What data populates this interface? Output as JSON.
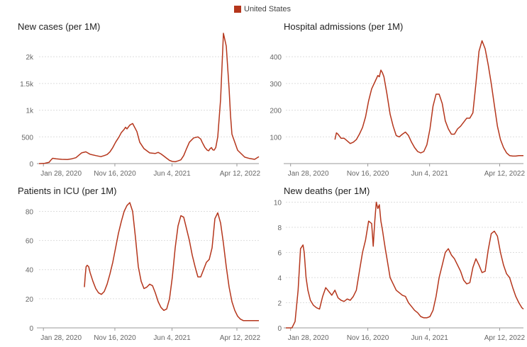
{
  "legend": {
    "label": "United States",
    "color": "#b5361c"
  },
  "colors": {
    "series": "#b5361c",
    "grid": "#dddddd",
    "axis_text": "#666666",
    "baseline": "#999999"
  },
  "x_ticks": [
    "Jan 28, 2020",
    "Nov 16, 2020",
    "Jun 4, 2021",
    "Apr 12, 2022"
  ],
  "chart_data": [
    {
      "type": "line",
      "title": "New cases (per 1M)",
      "series_name": "United States",
      "ylim": [
        0,
        2400
      ],
      "yticks": [
        0,
        500,
        1000,
        1500,
        2000
      ],
      "ytick_labels": [
        "0",
        "500",
        "1k",
        "1.5k",
        "2k"
      ],
      "x": [
        0,
        20,
        36,
        40,
        48,
        60,
        80,
        100,
        116,
        130,
        150,
        165,
        180,
        200,
        218,
        230,
        240,
        250,
        260,
        270,
        282,
        290,
        300,
        305,
        310,
        320,
        330,
        345,
        355,
        370,
        390,
        410,
        420,
        430,
        440,
        450,
        460,
        470,
        480,
        490,
        500,
        510,
        520,
        530,
        545,
        560,
        570,
        575,
        580,
        585,
        590,
        593,
        598,
        603,
        608,
        612,
        617,
        623,
        630,
        640,
        650,
        660,
        670,
        675,
        680,
        700,
        725,
        742,
        760,
        775
      ],
      "values": [
        0,
        5,
        25,
        55,
        100,
        90,
        80,
        75,
        90,
        110,
        200,
        220,
        175,
        150,
        130,
        150,
        170,
        220,
        300,
        400,
        500,
        580,
        640,
        680,
        650,
        720,
        750,
        600,
        400,
        280,
        200,
        190,
        210,
        180,
        140,
        100,
        60,
        40,
        35,
        50,
        70,
        150,
        280,
        400,
        480,
        500,
        460,
        400,
        350,
        300,
        270,
        250,
        240,
        280,
        300,
        260,
        250,
        300,
        500,
        1200,
        2440,
        2200,
        1400,
        900,
        550,
        250,
        120,
        95,
        80,
        130
      ]
    },
    {
      "type": "line",
      "title": "Hospital admissions (per 1M)",
      "series_name": "United States",
      "ylim": [
        0,
        480
      ],
      "yticks": [
        0,
        100,
        200,
        300,
        400
      ],
      "ytick_labels": [
        "",
        "100",
        "200",
        "300",
        "400"
      ],
      "x": [
        160,
        165,
        170,
        180,
        190,
        200,
        210,
        220,
        230,
        240,
        250,
        260,
        270,
        280,
        290,
        300,
        305,
        310,
        315,
        320,
        330,
        340,
        350,
        360,
        370,
        380,
        390,
        400,
        410,
        420,
        430,
        440,
        450,
        460,
        470,
        480,
        490,
        500,
        510,
        520,
        530,
        540,
        550,
        560,
        570,
        580,
        590,
        600,
        610,
        620,
        630,
        640,
        650,
        660,
        670,
        680,
        690,
        700,
        710,
        720,
        730,
        740,
        750,
        760,
        770,
        775
      ],
      "values": [
        90,
        115,
        110,
        95,
        95,
        85,
        75,
        80,
        90,
        110,
        135,
        175,
        235,
        280,
        305,
        330,
        325,
        350,
        340,
        325,
        260,
        185,
        140,
        105,
        100,
        110,
        118,
        105,
        80,
        60,
        45,
        40,
        45,
        70,
        130,
        215,
        260,
        260,
        225,
        160,
        130,
        110,
        110,
        130,
        140,
        155,
        170,
        170,
        190,
        300,
        420,
        460,
        430,
        370,
        300,
        220,
        140,
        90,
        60,
        40,
        30,
        28,
        28,
        30,
        30,
        30
      ]
    },
    {
      "type": "line",
      "title": "Patients in ICU (per 1M)",
      "series_name": "United States",
      "ylim": [
        0,
        88
      ],
      "yticks": [
        0,
        20,
        40,
        60,
        80
      ],
      "ytick_labels": [
        "0",
        "20",
        "40",
        "60",
        "80"
      ],
      "x": [
        160,
        163,
        166,
        170,
        175,
        180,
        190,
        200,
        210,
        220,
        230,
        240,
        250,
        260,
        270,
        280,
        290,
        300,
        310,
        320,
        330,
        340,
        350,
        360,
        370,
        380,
        390,
        400,
        410,
        420,
        430,
        440,
        450,
        460,
        470,
        480,
        490,
        500,
        510,
        520,
        530,
        540,
        550,
        560,
        570,
        580,
        590,
        600,
        610,
        620,
        630,
        640,
        650,
        660,
        670,
        680,
        690,
        700,
        710,
        720,
        730,
        740,
        750,
        760,
        770,
        775
      ],
      "values": [
        28,
        36,
        42,
        43,
        42,
        38,
        32,
        27,
        24,
        23,
        25,
        30,
        37,
        45,
        55,
        65,
        73,
        80,
        84,
        86,
        80,
        62,
        42,
        32,
        27,
        28,
        30,
        29,
        24,
        18,
        14,
        12,
        13,
        20,
        35,
        55,
        70,
        77,
        76,
        68,
        60,
        50,
        42,
        35,
        35,
        40,
        45,
        47,
        55,
        75,
        79,
        72,
        58,
        42,
        28,
        18,
        12,
        8,
        6,
        5,
        5,
        5,
        5,
        5,
        5,
        5
      ]
    },
    {
      "type": "line",
      "title": "New deaths (per 1M)",
      "series_name": "United States",
      "ylim": [
        0,
        10.2
      ],
      "yticks": [
        0,
        2,
        4,
        6,
        8,
        10
      ],
      "ytick_labels": [
        "0",
        "2",
        "4",
        "6",
        "8",
        "10"
      ],
      "x": [
        0,
        20,
        30,
        40,
        48,
        56,
        60,
        66,
        72,
        80,
        90,
        100,
        110,
        120,
        130,
        140,
        150,
        160,
        170,
        180,
        190,
        200,
        210,
        220,
        230,
        240,
        250,
        260,
        270,
        280,
        285,
        290,
        295,
        300,
        305,
        310,
        315,
        320,
        325,
        330,
        340,
        350,
        360,
        370,
        380,
        390,
        400,
        410,
        420,
        430,
        440,
        450,
        460,
        470,
        480,
        490,
        500,
        510,
        520,
        530,
        540,
        550,
        560,
        570,
        580,
        590,
        600,
        610,
        620,
        630,
        640,
        650,
        660,
        670,
        680,
        690,
        700,
        710,
        720,
        730,
        740,
        750,
        760,
        770,
        775
      ],
      "values": [
        0,
        0,
        0.5,
        3,
        6.3,
        6.6,
        6,
        4,
        3,
        2.2,
        1.8,
        1.6,
        1.5,
        2.5,
        3.2,
        2.9,
        2.6,
        3,
        2.4,
        2.2,
        2.1,
        2.3,
        2.2,
        2.5,
        3,
        4.5,
        6,
        7,
        8.5,
        8.3,
        6.5,
        8.5,
        10,
        9.5,
        9.8,
        8.5,
        7.8,
        7,
        6.2,
        5.5,
        4,
        3.5,
        3,
        2.8,
        2.6,
        2.5,
        2,
        1.7,
        1.4,
        1.2,
        0.9,
        0.8,
        0.8,
        0.9,
        1.4,
        2.5,
        4,
        5,
        6,
        6.3,
        5.8,
        5.5,
        5,
        4.5,
        3.8,
        3.5,
        3.6,
        4.8,
        5.5,
        5,
        4.4,
        4.5,
        6.2,
        7.5,
        7.7,
        7.3,
        6,
        5,
        4.3,
        4,
        3.2,
        2.5,
        2,
        1.6,
        1.5
      ]
    }
  ]
}
